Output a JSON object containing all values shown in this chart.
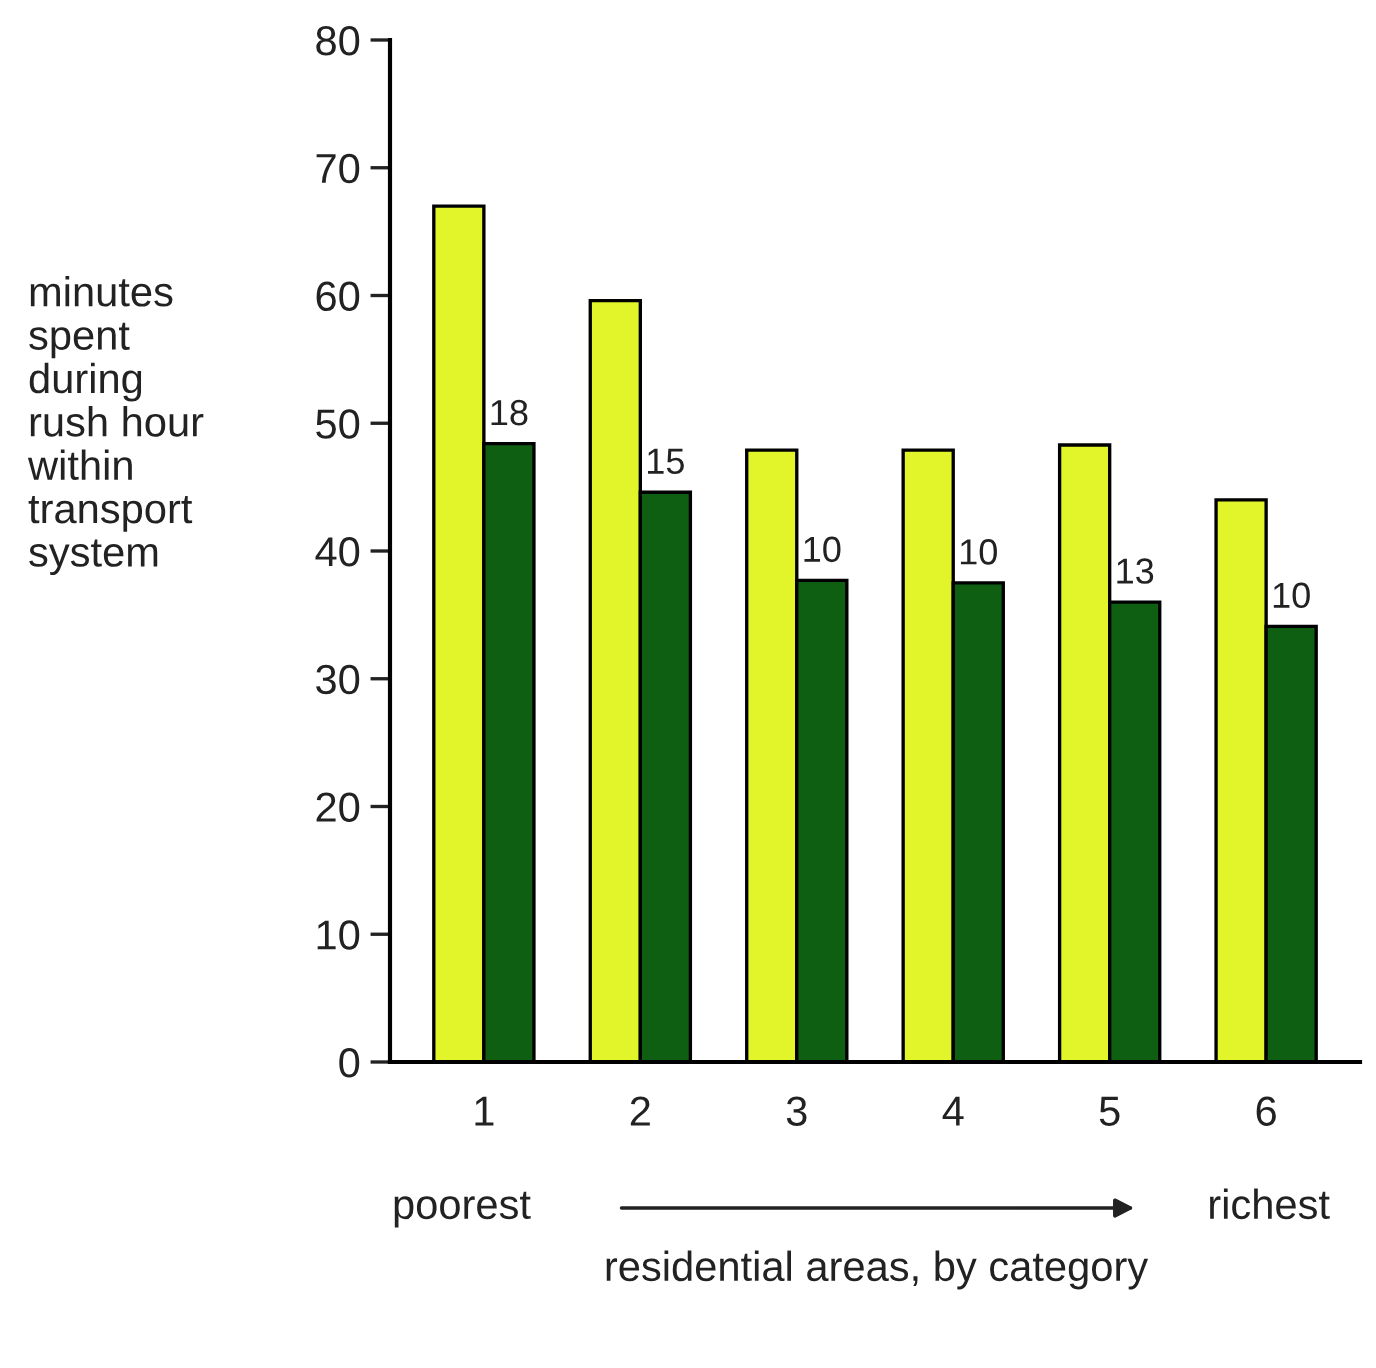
{
  "chart_data": {
    "type": "bar",
    "categories": [
      "1",
      "2",
      "3",
      "4",
      "5",
      "6"
    ],
    "series": [
      {
        "color": "#e2f52a",
        "values": [
          67,
          59.6,
          47.9,
          47.9,
          48.3,
          44
        ]
      },
      {
        "color": "#0e5f12",
        "values": [
          48.4,
          44.6,
          37.7,
          37.5,
          36,
          34.1
        ]
      }
    ],
    "ylabel": "minutes\nspent\nduring\nrush hour\nwithin\ntransport\nsystem",
    "xlabel": "residential areas, by category",
    "ylim": [
      0,
      80
    ],
    "yticks": [
      0,
      10,
      20,
      30,
      40,
      50,
      60,
      70,
      80
    ],
    "grid": false,
    "legend": false,
    "annotations": [
      {
        "text": "18",
        "x": "1",
        "y": 48.4
      },
      {
        "text": "15",
        "x": "2",
        "y": 44.6
      },
      {
        "text": "10",
        "x": "3",
        "y": 37.7
      },
      {
        "text": "10",
        "x": "4",
        "y": 37.5
      },
      {
        "text": "13",
        "x": "5",
        "y": 36
      },
      {
        "text": "10",
        "x": "6",
        "y": 34.1
      },
      "poorest",
      "richest"
    ]
  }
}
